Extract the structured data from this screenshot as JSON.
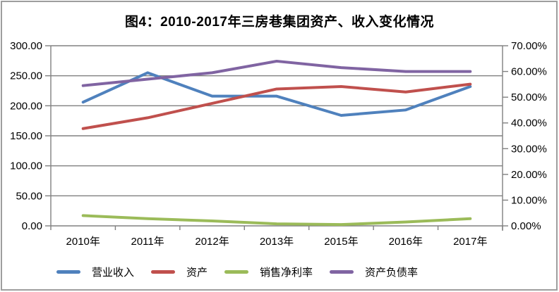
{
  "title": "图4：2010-2017年三房巷集团资产、收入变化情况",
  "colors": {
    "frame_border": "#9e9e9e",
    "gridline": "#808080",
    "axis": "#808080",
    "text": "#000000"
  },
  "chart_data": {
    "type": "line",
    "categories": [
      "2010年",
      "2011年",
      "2012年",
      "2013年",
      "2015年",
      "2016年",
      "2017年"
    ],
    "series": [
      {
        "key": "operating-revenue",
        "name": "营业收入",
        "axis": "left",
        "color": "#4F81BD",
        "values": [
          206,
          255,
          216,
          216,
          184,
          193,
          232
        ]
      },
      {
        "key": "total-assets",
        "name": "资产",
        "axis": "left",
        "color": "#C0504D",
        "values": [
          162,
          180,
          204,
          228,
          232,
          223,
          236
        ]
      },
      {
        "key": "net-profit-margin",
        "name": "销售净利率",
        "axis": "right",
        "color": "#9BBB59",
        "values": [
          4.0,
          2.8,
          1.9,
          0.8,
          0.5,
          1.5,
          2.8
        ]
      },
      {
        "key": "debt-asset-ratio",
        "name": "资产负债率",
        "axis": "right",
        "color": "#8064A2",
        "values": [
          54.5,
          57.0,
          59.5,
          64.0,
          61.5,
          60.0,
          60.0
        ]
      }
    ],
    "axes": {
      "left": {
        "min": 0,
        "max": 300,
        "step": 50,
        "tick_labels": [
          "0.00",
          "50.00",
          "100.00",
          "150.00",
          "200.00",
          "250.00",
          "300.00"
        ]
      },
      "right": {
        "min": 0,
        "max": 70,
        "step": 10,
        "tick_labels": [
          "0.00%",
          "10.00%",
          "20.00%",
          "30.00%",
          "40.00%",
          "50.00%",
          "60.00%",
          "70.00%"
        ]
      }
    },
    "grid": "horizontal",
    "legend_position": "bottom"
  }
}
